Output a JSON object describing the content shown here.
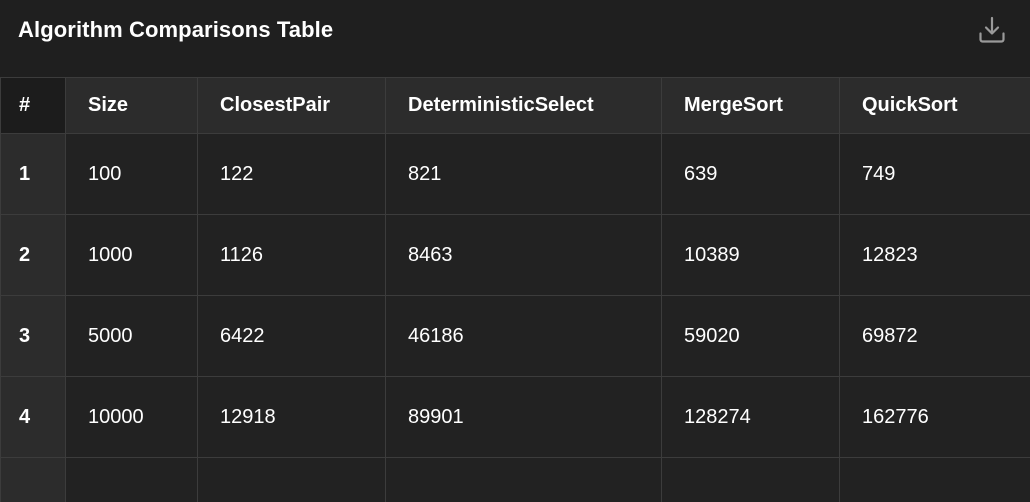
{
  "panel": {
    "title": "Algorithm Comparisons Table",
    "download_icon": "download-icon"
  },
  "table": {
    "columns": [
      "#",
      "Size",
      "ClosestPair",
      "DeterministicSelect",
      "MergeSort",
      "QuickSort"
    ],
    "rows": [
      [
        "1",
        "100",
        "122",
        "821",
        "639",
        "749"
      ],
      [
        "2",
        "1000",
        "1126",
        "8463",
        "10389",
        "12823"
      ],
      [
        "3",
        "5000",
        "6422",
        "46186",
        "59020",
        "69872"
      ],
      [
        "4",
        "10000",
        "12918",
        "89901",
        "128274",
        "162776"
      ]
    ]
  },
  "colors": {
    "background": "#1e1e1e",
    "header_cell": "#2c2c2c",
    "body_cell": "#222222",
    "grid_line": "#3c3c3c",
    "icon": "#9a9a9a"
  }
}
